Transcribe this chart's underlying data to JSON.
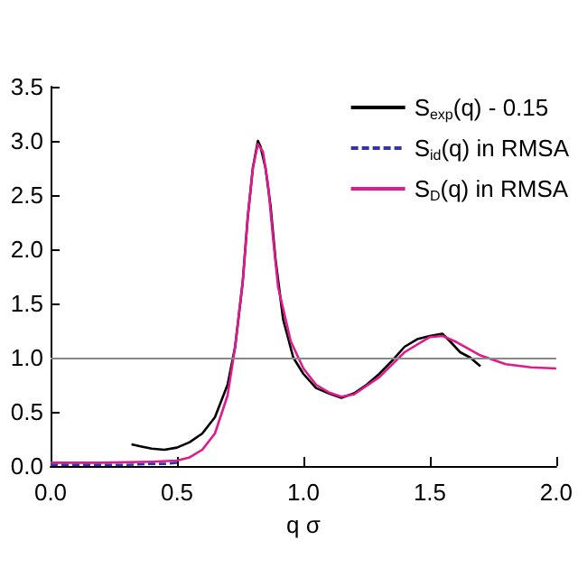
{
  "chart_data": {
    "type": "line",
    "xlabel": "q σ",
    "xlim": [
      0,
      2
    ],
    "xticks": [
      {
        "value": 0,
        "label": "0.0"
      },
      0.5,
      {
        "value": 1,
        "label": "1.0"
      },
      1.5,
      {
        "value": 2,
        "label": "2.0"
      }
    ],
    "ylim": [
      0,
      3.5
    ],
    "yticks": [
      {
        "value": 0,
        "label": "0.0"
      },
      0.5,
      {
        "value": 1,
        "label": "1.0"
      },
      1.5,
      {
        "value": 2,
        "label": "2.0"
      },
      2.5,
      {
        "value": 3,
        "label": "3.0"
      },
      3.5
    ],
    "grid": false,
    "legend": "top right",
    "marker": "none",
    "ref_lines": [
      {
        "axis": "y",
        "value": 1,
        "color": "#888888"
      }
    ],
    "series": [
      {
        "name": "S$_{exp}$(q) - 0.15",
        "color": "#000000",
        "line_style": "solid",
        "x": [
          0.32,
          0.36,
          0.4,
          0.45,
          0.5,
          0.55,
          0.6,
          0.65,
          0.7,
          0.73,
          0.76,
          0.78,
          0.8,
          0.82,
          0.83,
          0.85,
          0.87,
          0.89,
          0.92,
          0.96,
          1.0,
          1.05,
          1.1,
          1.15,
          1.2,
          1.25,
          1.3,
          1.35,
          1.4,
          1.45,
          1.5,
          1.55,
          1.58,
          1.62,
          1.66,
          1.7
        ],
        "values": [
          0.2,
          0.18,
          0.16,
          0.15,
          0.17,
          0.22,
          0.3,
          0.45,
          0.75,
          1.1,
          1.7,
          2.3,
          2.75,
          3.0,
          2.95,
          2.75,
          2.4,
          1.9,
          1.35,
          1.0,
          0.85,
          0.72,
          0.67,
          0.63,
          0.67,
          0.75,
          0.85,
          0.97,
          1.1,
          1.17,
          1.2,
          1.22,
          1.15,
          1.05,
          1.0,
          0.92
        ]
      },
      {
        "name": "S$_{id}$(q) in RMSA",
        "color": "#3333aa",
        "line_style": "dashed",
        "x": [
          0,
          0.1,
          0.2,
          0.3,
          0.4,
          0.45,
          0.5
        ],
        "values": [
          0.01,
          0.01,
          0.01,
          0.01,
          0.02,
          0.02,
          0.03
        ]
      },
      {
        "name": "S$_{D}$(q) in RMSA",
        "color": "#e0198c",
        "line_style": "solid",
        "x": [
          0,
          0.2,
          0.4,
          0.5,
          0.55,
          0.6,
          0.65,
          0.7,
          0.73,
          0.76,
          0.78,
          0.8,
          0.82,
          0.84,
          0.86,
          0.88,
          0.9,
          0.95,
          1.0,
          1.05,
          1.1,
          1.15,
          1.2,
          1.3,
          1.4,
          1.5,
          1.55,
          1.6,
          1.7,
          1.8,
          1.9,
          2.0
        ],
        "values": [
          0.03,
          0.03,
          0.04,
          0.05,
          0.08,
          0.15,
          0.3,
          0.65,
          1.1,
          1.7,
          2.3,
          2.75,
          2.97,
          2.9,
          2.6,
          2.1,
          1.65,
          1.15,
          0.9,
          0.75,
          0.68,
          0.64,
          0.66,
          0.82,
          1.05,
          1.19,
          1.2,
          1.15,
          1.02,
          0.94,
          0.91,
          0.9
        ]
      }
    ]
  }
}
